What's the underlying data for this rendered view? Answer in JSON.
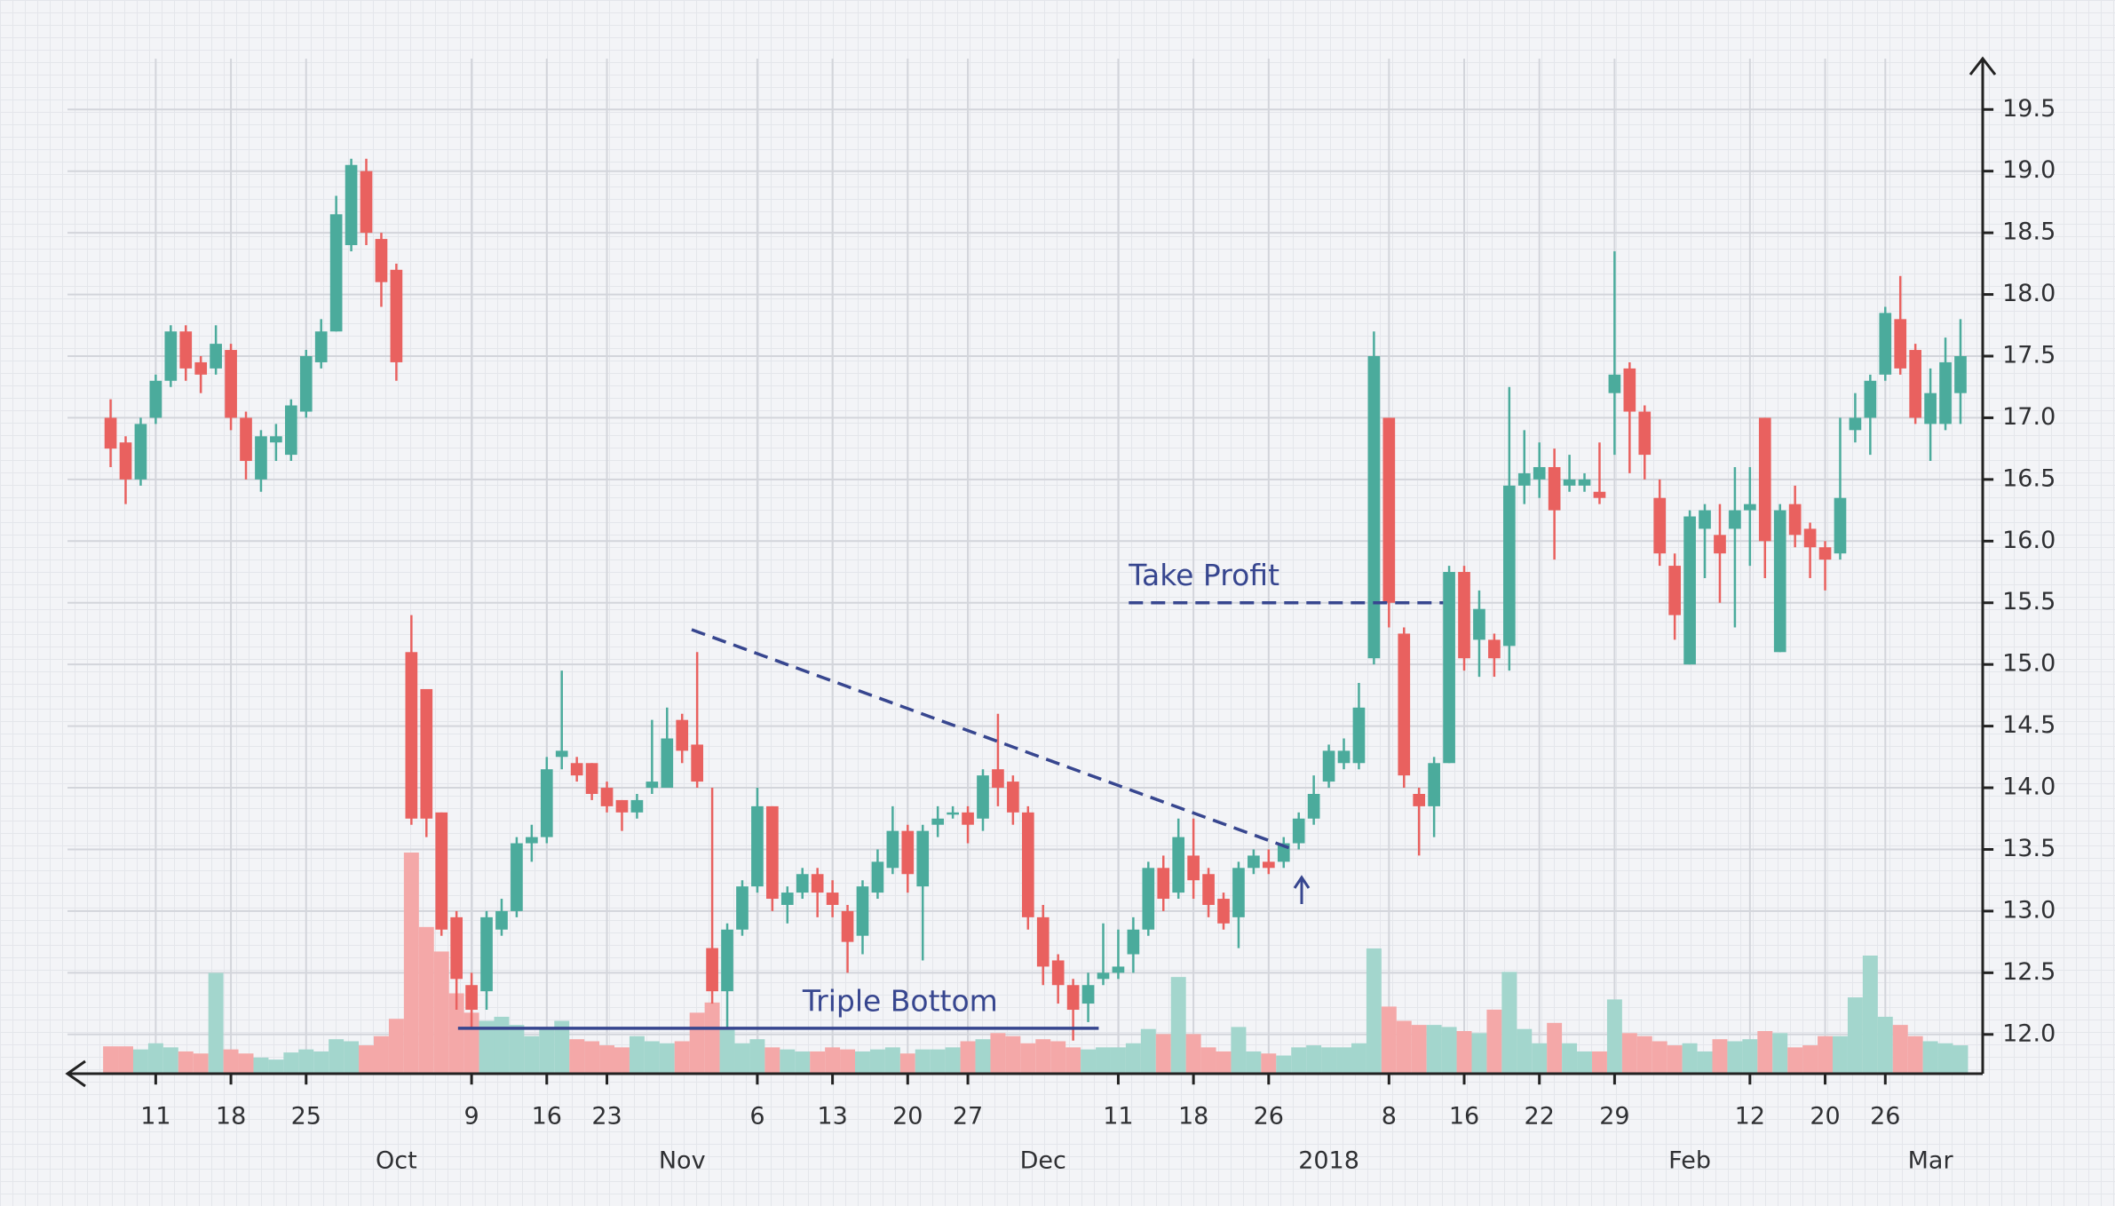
{
  "chart_data": {
    "type": "candlestick",
    "categories": [
      null,
      null,
      null,
      "11",
      null,
      null,
      null,
      null,
      "18",
      null,
      null,
      null,
      null,
      "25",
      null,
      null,
      null,
      null,
      null,
      null,
      null,
      null,
      null,
      null,
      "9",
      null,
      null,
      null,
      null,
      "16",
      null,
      null,
      null,
      "23",
      null,
      null,
      null,
      null,
      null,
      null,
      null,
      null,
      null,
      "6",
      null,
      null,
      null,
      null,
      "13",
      null,
      null,
      null,
      null,
      "20",
      null,
      null,
      null,
      "27",
      null,
      null,
      null,
      null,
      null,
      null,
      null,
      null,
      null,
      "11",
      null,
      null,
      null,
      null,
      "18",
      null,
      null,
      null,
      null,
      "26",
      null,
      null,
      null,
      null,
      null,
      null,
      null,
      "8",
      null,
      null,
      null,
      null,
      "16",
      null,
      null,
      null,
      null,
      "22",
      null,
      null,
      null,
      null,
      "29",
      null,
      null,
      null,
      null,
      null,
      null,
      null,
      null,
      "12",
      null,
      null,
      null,
      null,
      "20",
      null,
      null,
      null,
      "26",
      null,
      null,
      null,
      null,
      null
    ],
    "month_labels": [
      {
        "value": 19,
        "label": "Oct"
      },
      {
        "value": 38,
        "label": "Nov"
      },
      {
        "value": 62,
        "label": "Dec"
      },
      {
        "value": 81,
        "label": "2018"
      },
      {
        "value": 105,
        "label": "Feb"
      },
      {
        "value": 121,
        "label": "Mar"
      }
    ],
    "open": [
      17.0,
      16.8,
      16.5,
      17.0,
      17.3,
      17.7,
      17.45,
      17.4,
      17.55,
      17.0,
      16.5,
      16.8,
      16.7,
      17.05,
      17.45,
      17.7,
      18.4,
      19.0,
      18.45,
      18.2,
      15.1,
      14.8,
      13.8,
      12.95,
      12.4,
      12.35,
      12.85,
      13.0,
      13.55,
      13.6,
      14.25,
      14.2,
      14.2,
      14.0,
      13.9,
      13.8,
      14.0,
      14.0,
      14.55,
      14.35,
      12.7,
      12.35,
      12.85,
      13.2,
      13.85,
      13.05,
      13.15,
      13.3,
      13.15,
      13.0,
      12.8,
      13.15,
      13.35,
      13.65,
      13.2,
      13.7,
      13.8,
      13.8,
      13.75,
      14.15,
      14.05,
      13.8,
      12.95,
      12.6,
      12.4,
      12.25,
      12.45,
      12.5,
      12.65,
      12.85,
      13.35,
      13.15,
      13.45,
      13.3,
      13.1,
      12.95,
      13.35,
      13.4,
      13.4,
      13.55,
      13.75,
      14.05,
      14.2,
      14.2,
      15.05,
      17.0,
      15.25,
      13.95,
      13.85,
      14.2,
      15.75,
      15.2,
      15.2,
      15.15,
      16.45,
      16.5,
      16.6,
      16.45,
      16.45,
      16.4,
      17.2,
      17.4,
      17.05,
      16.35,
      15.8,
      15.0,
      16.1,
      16.05,
      16.1,
      16.25,
      17.0,
      15.1,
      16.3,
      16.1,
      15.95,
      15.9,
      16.9,
      17.0,
      17.35,
      17.8,
      17.55,
      16.95,
      16.95,
      17.2
    ],
    "high": [
      17.15,
      16.85,
      17.0,
      17.35,
      17.75,
      17.75,
      17.5,
      17.75,
      17.6,
      17.05,
      16.9,
      16.95,
      17.15,
      17.55,
      17.8,
      18.8,
      19.1,
      19.1,
      18.5,
      18.25,
      15.4,
      14.8,
      13.8,
      13.0,
      12.5,
      13.0,
      13.1,
      13.6,
      13.7,
      14.25,
      14.95,
      14.25,
      14.2,
      14.05,
      13.9,
      13.95,
      14.55,
      14.65,
      14.6,
      15.1,
      14.0,
      12.9,
      13.25,
      14.0,
      13.85,
      13.2,
      13.35,
      13.35,
      13.25,
      13.05,
      13.25,
      13.5,
      13.85,
      13.7,
      13.7,
      13.85,
      13.85,
      13.85,
      14.15,
      14.6,
      14.1,
      13.85,
      13.05,
      12.65,
      12.45,
      12.5,
      12.9,
      12.85,
      12.95,
      13.4,
      13.45,
      13.75,
      13.75,
      13.35,
      13.15,
      13.4,
      13.5,
      13.5,
      13.6,
      13.8,
      14.1,
      14.35,
      14.4,
      14.85,
      17.7,
      17.0,
      15.3,
      14.0,
      14.25,
      15.8,
      15.8,
      15.6,
      15.25,
      17.25,
      16.9,
      16.8,
      16.75,
      16.7,
      16.55,
      16.8,
      18.35,
      17.45,
      17.1,
      16.5,
      15.9,
      16.25,
      16.3,
      16.3,
      16.6,
      16.6,
      17.0,
      16.3,
      16.45,
      16.15,
      16.0,
      17.0,
      17.2,
      17.35,
      17.9,
      18.15,
      17.6,
      17.4,
      17.65,
      17.8
    ],
    "low": [
      16.6,
      16.3,
      16.45,
      16.95,
      17.25,
      17.3,
      17.2,
      17.35,
      16.9,
      16.5,
      16.4,
      16.65,
      16.65,
      17.0,
      17.4,
      17.7,
      18.35,
      18.4,
      17.9,
      17.3,
      13.7,
      13.6,
      12.8,
      12.2,
      12.05,
      12.2,
      12.8,
      12.95,
      13.4,
      13.55,
      14.15,
      14.05,
      13.9,
      13.8,
      13.65,
      13.75,
      13.95,
      14.0,
      14.2,
      14.0,
      12.25,
      12.05,
      12.8,
      13.15,
      13.0,
      12.9,
      13.1,
      12.95,
      12.95,
      12.5,
      12.65,
      13.1,
      13.3,
      13.15,
      12.6,
      13.6,
      13.75,
      13.55,
      13.65,
      13.85,
      13.7,
      12.85,
      12.4,
      12.25,
      11.95,
      12.1,
      12.4,
      12.45,
      12.5,
      12.8,
      13.0,
      13.1,
      13.1,
      12.95,
      12.85,
      12.7,
      13.3,
      13.3,
      13.35,
      13.5,
      13.7,
      14.0,
      14.15,
      14.15,
      15.0,
      15.3,
      14.0,
      13.45,
      13.6,
      14.2,
      14.95,
      14.9,
      14.9,
      14.95,
      16.3,
      16.35,
      15.85,
      16.4,
      16.4,
      16.3,
      16.7,
      16.55,
      16.5,
      15.8,
      15.2,
      15.0,
      15.7,
      15.5,
      15.3,
      15.8,
      15.7,
      15.1,
      15.95,
      15.7,
      15.6,
      15.85,
      16.8,
      16.7,
      17.3,
      17.35,
      16.95,
      16.65,
      16.9,
      16.95
    ],
    "close": [
      16.75,
      16.5,
      16.95,
      17.3,
      17.7,
      17.4,
      17.35,
      17.6,
      17.0,
      16.65,
      16.85,
      16.85,
      17.1,
      17.5,
      17.7,
      18.65,
      19.05,
      18.5,
      18.1,
      17.45,
      13.75,
      13.75,
      12.85,
      12.45,
      12.2,
      12.95,
      13.0,
      13.55,
      13.6,
      14.15,
      14.3,
      14.1,
      13.95,
      13.85,
      13.8,
      13.9,
      14.05,
      14.4,
      14.3,
      14.05,
      12.35,
      12.85,
      13.2,
      13.85,
      13.1,
      13.15,
      13.3,
      13.15,
      13.05,
      12.75,
      13.2,
      13.4,
      13.65,
      13.3,
      13.65,
      13.75,
      13.8,
      13.7,
      14.1,
      14.0,
      13.8,
      12.95,
      12.55,
      12.4,
      12.2,
      12.4,
      12.5,
      12.55,
      12.85,
      13.35,
      13.1,
      13.6,
      13.25,
      13.05,
      12.9,
      13.35,
      13.45,
      13.35,
      13.55,
      13.75,
      13.95,
      14.3,
      14.3,
      14.65,
      17.5,
      15.5,
      14.1,
      13.85,
      14.2,
      15.75,
      15.05,
      15.45,
      15.05,
      16.45,
      16.55,
      16.6,
      16.25,
      16.5,
      16.5,
      16.35,
      17.35,
      17.05,
      16.7,
      15.9,
      15.4,
      16.2,
      16.25,
      15.9,
      16.25,
      16.3,
      16.0,
      16.25,
      16.05,
      15.95,
      15.85,
      16.35,
      17.0,
      17.3,
      17.85,
      17.4,
      17.0,
      17.2,
      17.45,
      17.5
    ],
    "volume": [
      2.7,
      2.7,
      2.4,
      3,
      2.6,
      2.2,
      2,
      9.9,
      2.4,
      2,
      1.6,
      1.4,
      2.1,
      2.4,
      2.2,
      3.4,
      3.2,
      2.8,
      3.7,
      5.4,
      21.7,
      14.4,
      12,
      7.9,
      6,
      5.2,
      5.6,
      4.8,
      3.7,
      4.4,
      5.2,
      3.4,
      3.2,
      2.8,
      2.6,
      3.7,
      3.2,
      3,
      3.2,
      6,
      7,
      4.4,
      3,
      3.4,
      2.6,
      2.4,
      2.2,
      2.2,
      2.6,
      2.4,
      2.2,
      2.4,
      2.6,
      2,
      2.4,
      2.4,
      2.6,
      3.2,
      3.4,
      4,
      3.7,
      3,
      3.4,
      3.2,
      2.6,
      2.4,
      2.6,
      2.6,
      3,
      4.4,
      3.9,
      9.5,
      3.9,
      2.6,
      2.2,
      4.6,
      2.2,
      2,
      1.8,
      2.6,
      2.8,
      2.6,
      2.6,
      3,
      12.3,
      6.6,
      5.2,
      4.8,
      4.8,
      4.6,
      4.2,
      4,
      6.3,
      10,
      4.4,
      3,
      5,
      3,
      2.2,
      2.2,
      7.3,
      4,
      3.7,
      3.2,
      2.8,
      3,
      2.2,
      3.4,
      3.2,
      3.4,
      4.2,
      4,
      2.6,
      2.8,
      3.7,
      3.7,
      7.5,
      11.6,
      5.6,
      4.8,
      3.7,
      3.2,
      3,
      2.8
    ],
    "up_color": "#4bab9c",
    "down_color": "#e9615f",
    "volume_up_color": "#a3d6cd",
    "volume_down_color": "#f4a8a8",
    "ylim": [
      11.68,
      19.95
    ],
    "yticks": [
      {
        "value": 12,
        "label": "12.0"
      },
      12.5,
      {
        "value": 13,
        "label": "13.0"
      },
      13.5,
      {
        "value": 14,
        "label": "14.0"
      },
      14.5,
      {
        "value": 15,
        "label": "15.0"
      },
      15.5,
      {
        "value": 16,
        "label": "16.0"
      },
      16.5,
      {
        "value": 17,
        "label": "17.0"
      },
      17.5,
      {
        "value": 18,
        "label": "18.0"
      },
      18.5,
      {
        "value": 19,
        "label": "19.0"
      },
      19.5
    ],
    "y2lim": [
      0,
      100
    ],
    "grid": true,
    "annotations": [
      {
        "text": "Take Profit",
        "y": 15.5
      },
      {
        "text": "Triple Bottom",
        "y": 12.05
      }
    ]
  }
}
